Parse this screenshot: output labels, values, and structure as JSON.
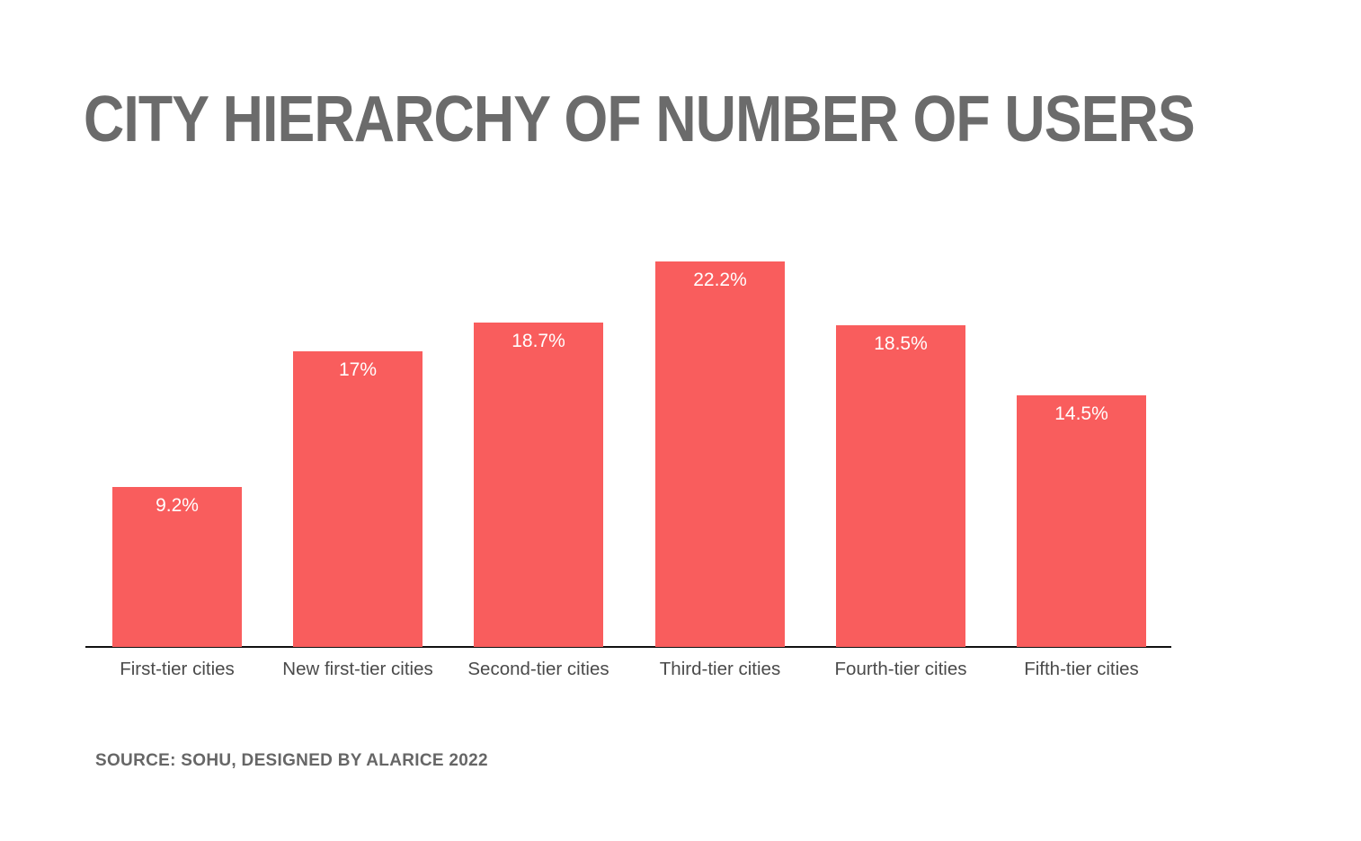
{
  "title": "CITY HIERARCHY OF NUMBER OF USERS",
  "source_note": "SOURCE: SOHU, DESIGNED BY ALARICE 2022",
  "colors": {
    "background": "#FFFFFF",
    "bar": "#F95D5D",
    "title_text": "#6B6B6B",
    "category_label_text": "#4A4A4A",
    "value_label_text": "#FFFFFF",
    "source_text": "#666666",
    "axis_line": "#111111"
  },
  "chart_data": {
    "type": "bar",
    "title": "CITY HIERARCHY OF NUMBER OF USERS",
    "categories": [
      "First-tier cities",
      "New first-tier cities",
      "Second-tier cities",
      "Third-tier cities",
      "Fourth-tier cities",
      "Fifth-tier cities"
    ],
    "values": [
      9.2,
      17,
      18.7,
      22.2,
      18.5,
      14.5
    ],
    "value_labels": [
      "9.2%",
      "17%",
      "18.7%",
      "22.2%",
      "18.5%",
      "14.5%"
    ],
    "unit": "%",
    "xlabel": "",
    "ylabel": "",
    "ylim": [
      0,
      23.2
    ],
    "grid": false,
    "legend": false,
    "y_axis_visible": false,
    "data_label_position": "inside-top",
    "bar_color": "#F95D5D",
    "annotation": "SOURCE: SOHU, DESIGNED BY ALARICE 2022"
  }
}
